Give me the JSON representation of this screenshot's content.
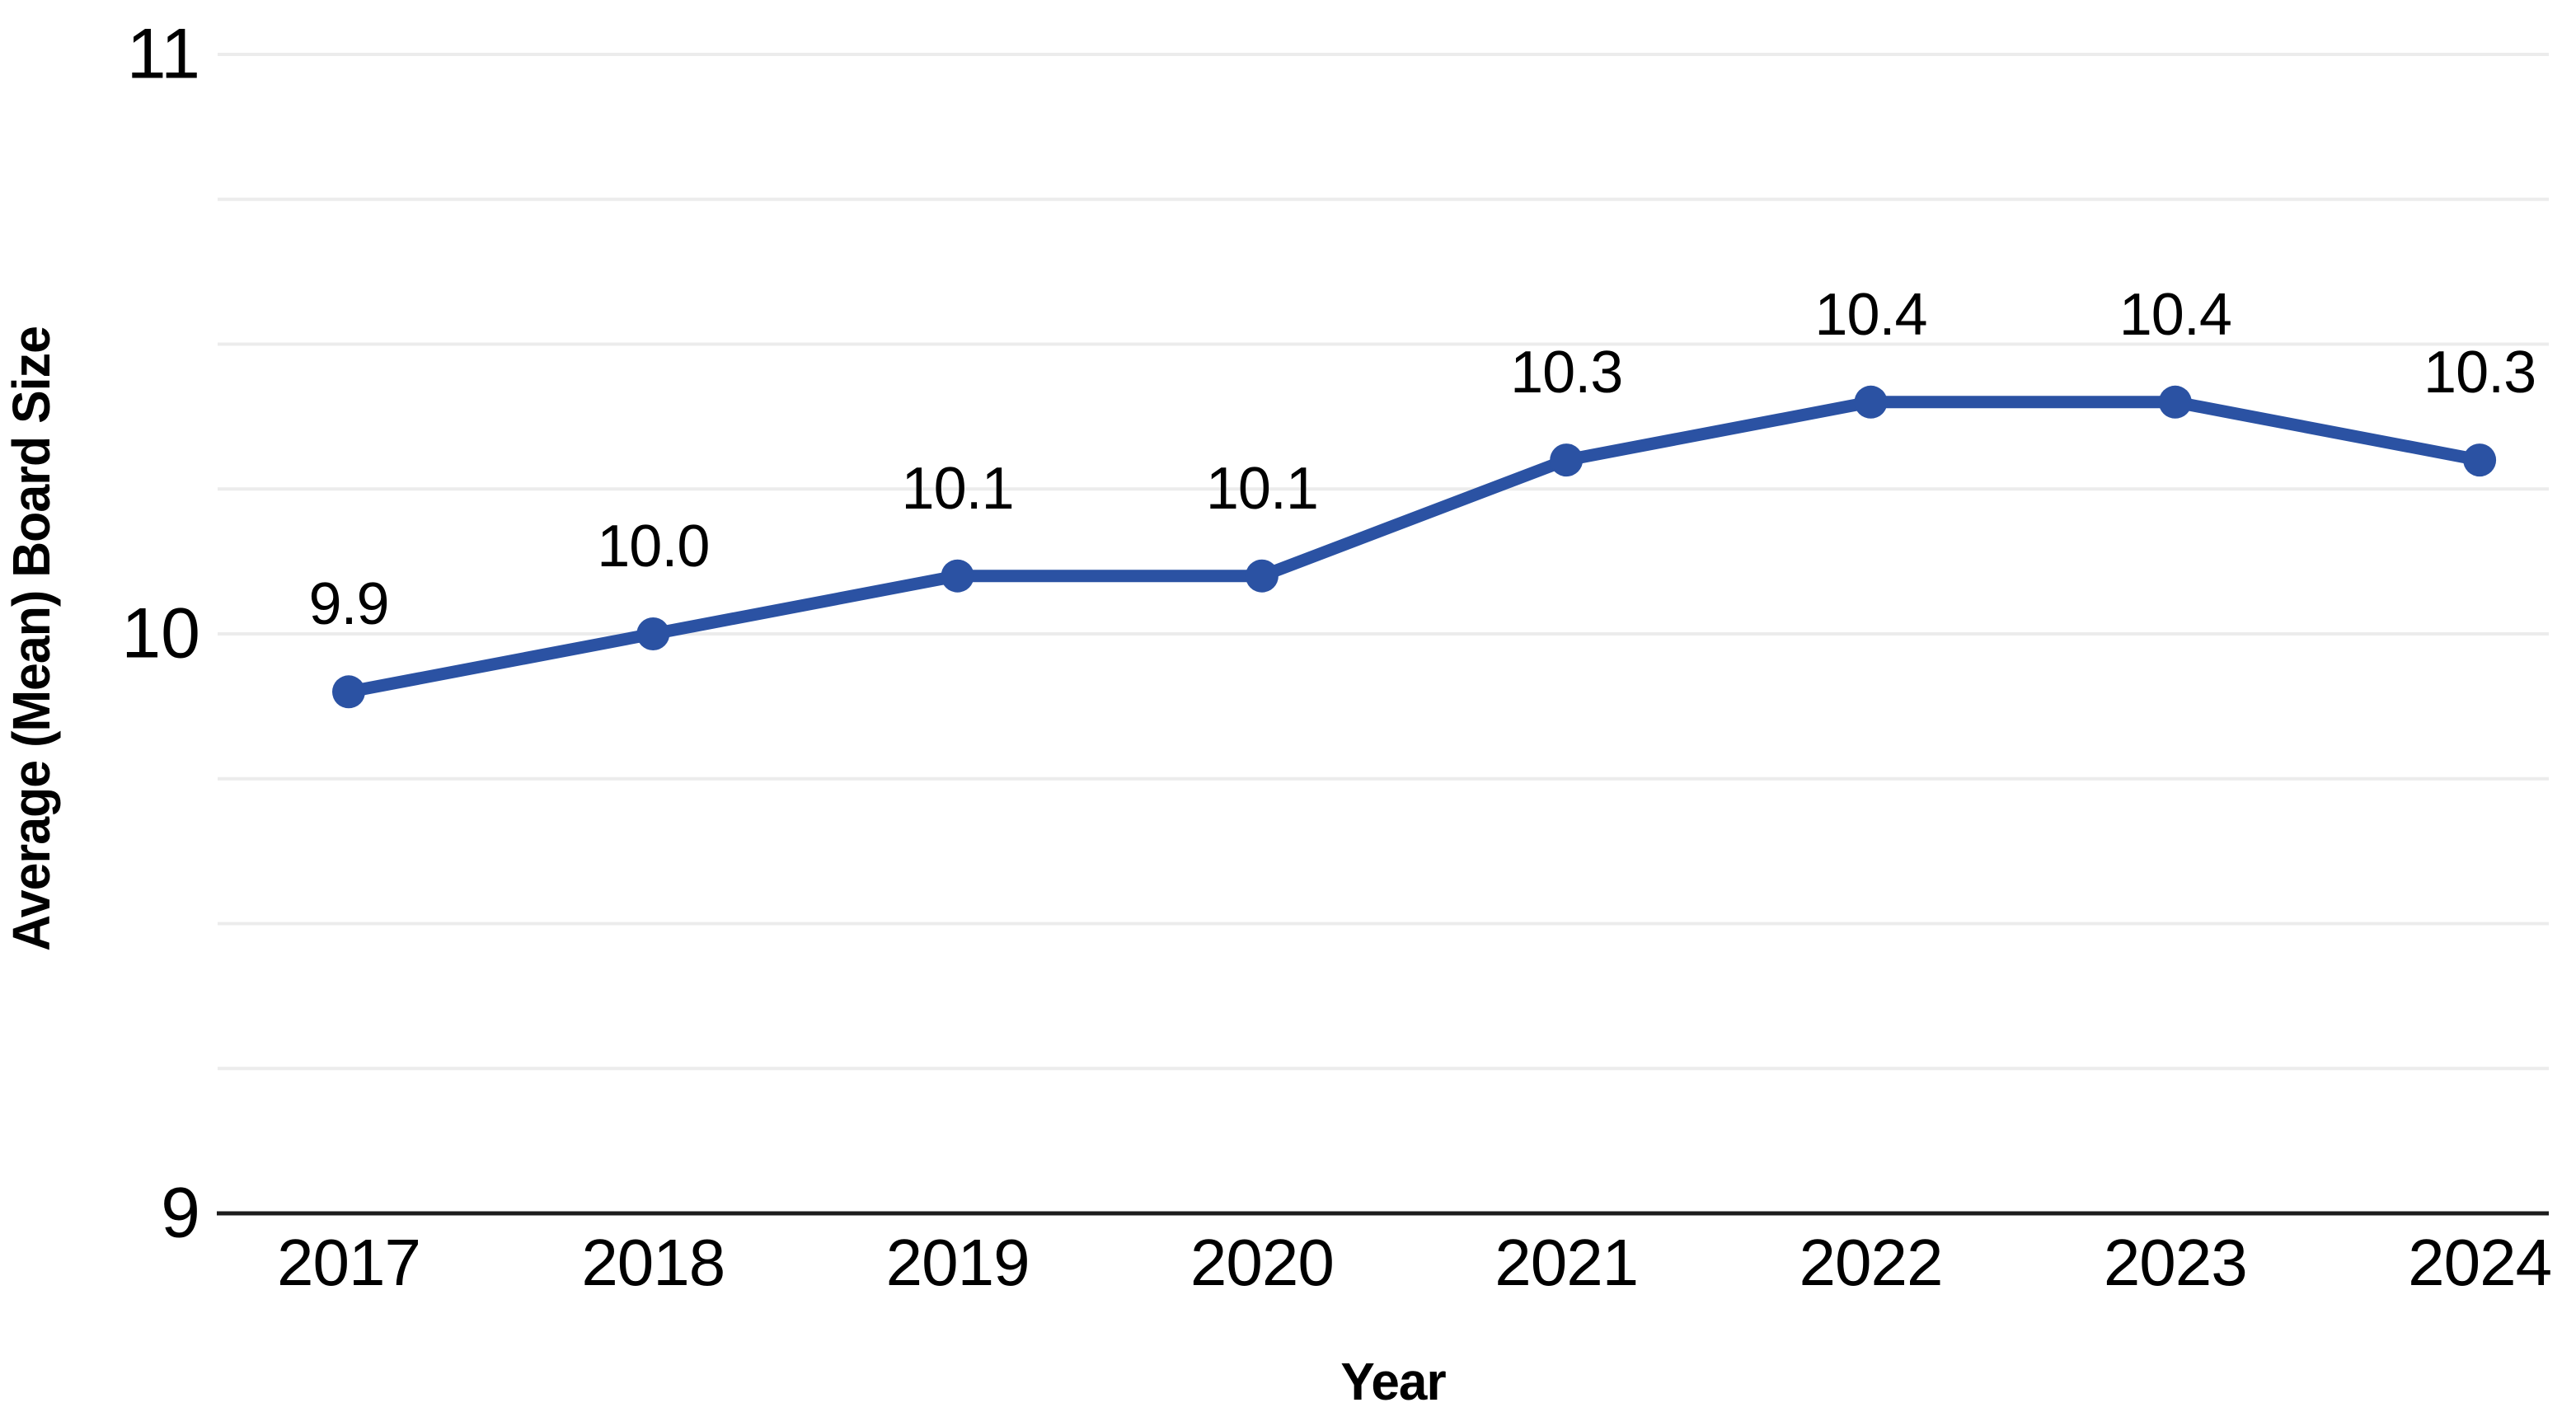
{
  "chart_data": {
    "type": "line",
    "title": "",
    "xlabel": "Year",
    "ylabel": "Average (Mean) Board Size",
    "categories": [
      "2017",
      "2018",
      "2019",
      "2020",
      "2021",
      "2022",
      "2023",
      "2024"
    ],
    "series": [
      {
        "name": "Average (Mean) Board Size",
        "values": [
          9.9,
          10.0,
          10.1,
          10.1,
          10.3,
          10.4,
          10.4,
          10.3
        ],
        "point_labels": [
          "9.9",
          "10.0",
          "10.1",
          "10.1",
          "10.3",
          "10.4",
          "10.4",
          "10.3"
        ],
        "color": "#2b52a3",
        "marker": "circle"
      }
    ],
    "ylim": [
      9,
      11
    ],
    "ytick_values": [
      9,
      10,
      11
    ],
    "ytick_labels": [
      "9",
      "10",
      "11"
    ],
    "grid": "horizontal",
    "grid_interval": 0.25,
    "legend": "none",
    "data_labels": "above-points"
  },
  "colors": {
    "line": "#2b52a3",
    "gridline": "#ececec",
    "axis_line": "#1c1c1c",
    "text": "#000000",
    "background": "#ffffff"
  }
}
